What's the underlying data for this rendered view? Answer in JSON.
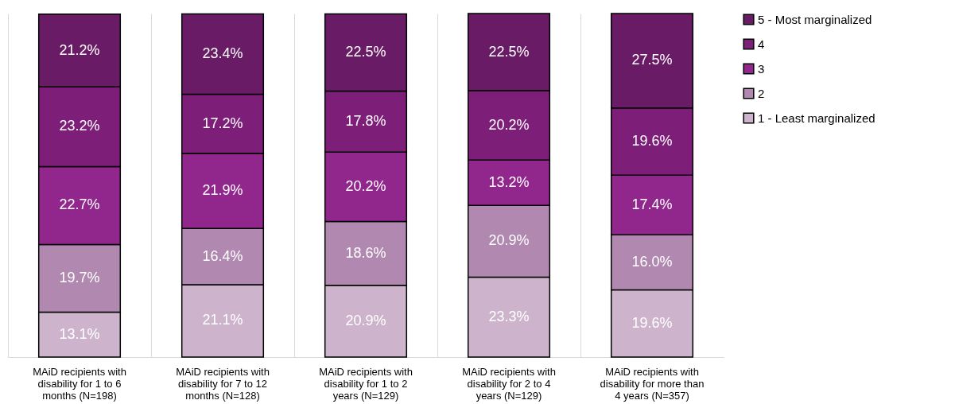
{
  "chart_data": {
    "type": "bar",
    "stacked": true,
    "tick_labels": "x",
    "grid": "x",
    "legend": "right",
    "categories": [
      "MAiD recipients with disability for 1 to 6 months (N=198)",
      "MAiD recipients with disability for 7 to 12 months (N=128)",
      "MAiD recipients with disability for 1 to 2 years (N=129)",
      "MAiD recipients with disability for 2 to 4 years (N=129)",
      "MAiD recipients with disability for more than 4 years (N=357)"
    ],
    "series": [
      {
        "name": "1 - Least marginalized",
        "color": "#cdb4cc",
        "values": [
          13.1,
          21.1,
          20.9,
          23.3,
          19.6
        ],
        "value_labels": [
          "13.1%",
          "21.1%",
          "20.9%",
          "23.3%",
          "19.6%"
        ]
      },
      {
        "name": "2",
        "color": "#b088b0",
        "values": [
          19.7,
          16.4,
          18.6,
          20.9,
          16.0
        ],
        "value_labels": [
          "19.7%",
          "16.4%",
          "18.6%",
          "20.9%",
          "16.0%"
        ]
      },
      {
        "name": "3",
        "color": "#91268d",
        "values": [
          22.7,
          21.9,
          20.2,
          13.2,
          17.4
        ],
        "value_labels": [
          "22.7%",
          "21.9%",
          "20.2%",
          "13.2%",
          "17.4%"
        ]
      },
      {
        "name": "4",
        "color": "#7d1e79",
        "values": [
          23.2,
          17.2,
          17.8,
          20.2,
          19.6
        ],
        "value_labels": [
          "23.2%",
          "17.2%",
          "17.8%",
          "20.2%",
          "19.6%"
        ]
      },
      {
        "name": "5 - Most marginalized",
        "color": "#6a1b66",
        "values": [
          21.2,
          23.4,
          22.5,
          22.5,
          27.5
        ],
        "value_labels": [
          "21.2%",
          "23.4%",
          "22.5%",
          "22.5%",
          "27.5%"
        ]
      }
    ]
  }
}
